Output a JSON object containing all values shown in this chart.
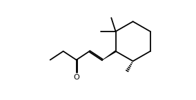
{
  "bg_color": "#ffffff",
  "line_color": "#000000",
  "line_width": 1.3,
  "figsize": [
    2.84,
    1.46
  ],
  "dpi": 100,
  "xlim": [
    -0.5,
    10.5
  ],
  "ylim": [
    -0.5,
    7.5
  ]
}
